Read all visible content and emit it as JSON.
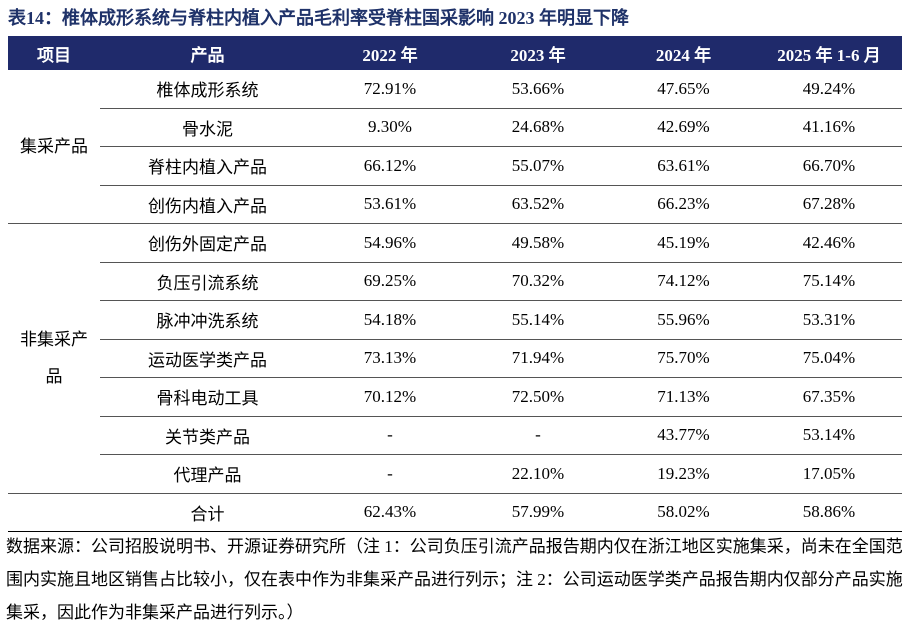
{
  "title": "表14：椎体成形系统与脊柱内植入产品毛利率受脊柱国采影响 2023 年明显下降",
  "table": {
    "header": [
      "项目",
      "产品",
      "2022 年",
      "2023 年",
      "2024 年",
      "2025 年 1-6 月"
    ],
    "groups": [
      {
        "label": "集采产品",
        "rows": [
          [
            "椎体成形系统",
            "72.91%",
            "53.66%",
            "47.65%",
            "49.24%"
          ],
          [
            "骨水泥",
            "9.30%",
            "24.68%",
            "42.69%",
            "41.16%"
          ],
          [
            "脊柱内植入产品",
            "66.12%",
            "55.07%",
            "63.61%",
            "66.70%"
          ],
          [
            "创伤内植入产品",
            "53.61%",
            "63.52%",
            "66.23%",
            "67.28%"
          ]
        ]
      },
      {
        "label": "非集采产品",
        "rows": [
          [
            "创伤外固定产品",
            "54.96%",
            "49.58%",
            "45.19%",
            "42.46%"
          ],
          [
            "负压引流系统",
            "69.25%",
            "70.32%",
            "74.12%",
            "75.14%"
          ],
          [
            "脉冲冲洗系统",
            "54.18%",
            "55.14%",
            "55.96%",
            "53.31%"
          ],
          [
            "运动医学类产品",
            "73.13%",
            "71.94%",
            "75.70%",
            "75.04%"
          ],
          [
            "骨科电动工具",
            "70.12%",
            "72.50%",
            "71.13%",
            "67.35%"
          ],
          [
            "关节类产品",
            "-",
            "-",
            "43.77%",
            "53.14%"
          ],
          [
            "代理产品",
            "-",
            "22.10%",
            "19.23%",
            "17.05%"
          ]
        ]
      }
    ],
    "total": [
      "合计",
      "62.43%",
      "57.99%",
      "58.02%",
      "58.86%"
    ]
  },
  "footnote": "数据来源：公司招股说明书、开源证券研究所（注 1：公司负压引流产品报告期内仅在浙江地区实施集采，尚未在全国范围内实施且地区销售占比较小，仅在表中作为非集采产品进行列示；注 2：公司运动医学类产品报告期内仅部分产品实施集采，因此作为非集采产品进行列示。）"
}
